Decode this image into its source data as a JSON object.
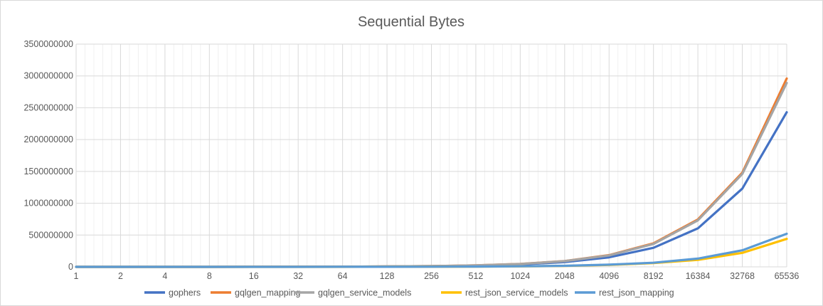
{
  "chart_data": {
    "type": "line",
    "title": "Sequential Bytes",
    "xlabel": "",
    "ylabel": "",
    "categories": [
      "1",
      "2",
      "4",
      "8",
      "16",
      "32",
      "64",
      "128",
      "256",
      "512",
      "1024",
      "2048",
      "4096",
      "8192",
      "16384",
      "32768",
      "65536"
    ],
    "ylim": [
      0,
      3500000000
    ],
    "yticks": [
      0,
      500000000,
      1000000000,
      1500000000,
      2000000000,
      2500000000,
      3000000000,
      3500000000
    ],
    "grid": true,
    "legend_position": "bottom",
    "series": [
      {
        "name": "gophers",
        "color": "#4472C4",
        "values": [
          40000,
          80000,
          160000,
          320000,
          640000,
          1300000,
          2600000,
          5200000,
          10000000,
          20000000,
          38000000,
          75000000,
          150000000,
          300000000,
          605000000,
          1230000000,
          2430000000
        ]
      },
      {
        "name": "gqlgen_mapping",
        "color": "#ED7D31",
        "values": [
          50000,
          100000,
          200000,
          400000,
          800000,
          1600000,
          3200000,
          6400000,
          12000000,
          23000000,
          46000000,
          92000000,
          185000000,
          370000000,
          745000000,
          1480000000,
          2960000000
        ]
      },
      {
        "name": "gqlgen_service_models",
        "color": "#A5A5A5",
        "values": [
          50000,
          100000,
          200000,
          400000,
          800000,
          1600000,
          3200000,
          6300000,
          12000000,
          23000000,
          45000000,
          90000000,
          180000000,
          360000000,
          730000000,
          1460000000,
          2890000000
        ]
      },
      {
        "name": "rest_json_service_models",
        "color": "#FFC000",
        "values": [
          8000,
          16000,
          30000,
          60000,
          120000,
          240000,
          480000,
          960000,
          1900000,
          3800000,
          7500000,
          15000000,
          30000000,
          60000000,
          110000000,
          220000000,
          440000000
        ]
      },
      {
        "name": "rest_json_mapping",
        "color": "#5B9BD5",
        "values": [
          9000,
          18000,
          35000,
          70000,
          140000,
          280000,
          560000,
          1100000,
          2200000,
          4400000,
          8800000,
          17000000,
          35000000,
          65000000,
          130000000,
          260000000,
          520000000
        ]
      }
    ]
  }
}
